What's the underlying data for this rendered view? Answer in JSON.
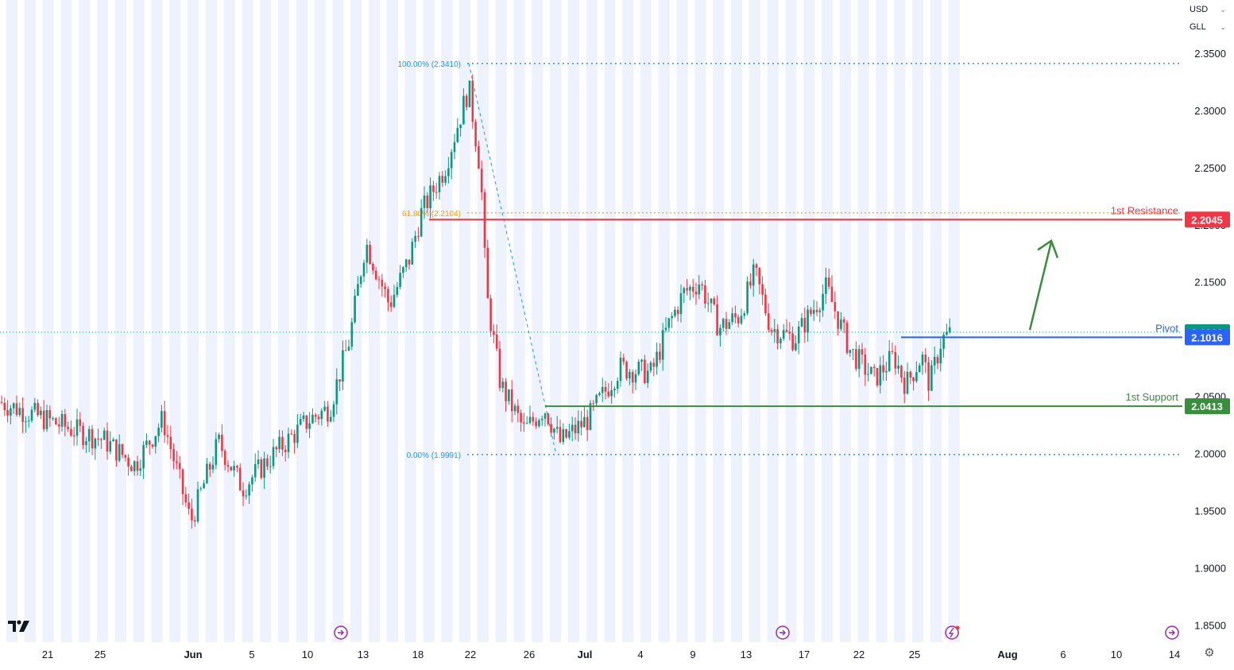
{
  "currency_selectors": [
    {
      "value": "USD"
    },
    {
      "value": "GLL"
    }
  ],
  "icons": {
    "logo": "tradingview-logo-icon",
    "settings": "gear-icon",
    "events": "dividend-arrow-icon",
    "alert": "lightning-icon"
  },
  "colors": {
    "up": "#089981",
    "down": "#f23645",
    "resistance": "#f23645",
    "pivot": "#2962ff",
    "support": "#388e3c",
    "fib": "#2196f3",
    "fib_mid": "#ff9800",
    "session_shade": "#eef2fc"
  },
  "chart_data": {
    "type": "candlestick",
    "xlabel": "",
    "ylabel": "",
    "y_axis_ticks": [
      "2.3500",
      "2.3000",
      "2.2500",
      "2.2000",
      "2.1500",
      "2.1000",
      "2.0500",
      "2.0000",
      "1.9500",
      "1.9000",
      "1.8500"
    ],
    "ylim": [
      1.835,
      2.3965
    ],
    "x_axis_labels": [
      "21",
      "25",
      "Jun",
      "5",
      "10",
      "13",
      "18",
      "22",
      "26",
      "Jul",
      "4",
      "9",
      "13",
      "17",
      "22",
      "25",
      "Aug",
      "6",
      "10",
      "14"
    ],
    "levels": [
      {
        "label": "1st Resistance",
        "value": "2.2045",
        "color": "#f23645"
      },
      {
        "label": "Pivot",
        "value": "2.1016",
        "color": "#2962ff"
      },
      {
        "label": "1st Support",
        "value": "2.0413",
        "color": "#388e3c"
      }
    ],
    "last_price": {
      "value": "2.1060",
      "color": "#089981"
    },
    "fibonacci": [
      {
        "label": "100.00% (2.3410)",
        "value": 2.341
      },
      {
        "label": "61.80% (2.2104)",
        "value": 2.2104
      },
      {
        "label": "0.00% (1.9991)",
        "value": 1.9991
      }
    ],
    "anchors": {
      "high": 2.341,
      "low": 1.9991,
      "start": 2.045,
      "peak_b": 2.185,
      "bottom_a": 1.94,
      "swing_c": 2.158,
      "swing_d": 2.065,
      "swing_e": 2.112
    },
    "trend_arrow": "up",
    "grid": false
  }
}
